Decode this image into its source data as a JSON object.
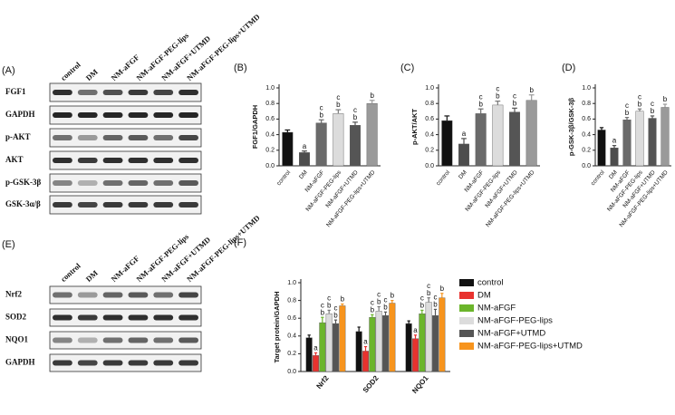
{
  "blots": [
    {
      "panel": "(A)",
      "columns": [
        "control",
        "DM",
        "NM-aFGF",
        "NM-aFGF-PEG-lips",
        "NM-aFGF+UTMD",
        "NM-aFGF-PEG-lips+UTMD"
      ],
      "rows": [
        "FGF1",
        "GAPDH",
        "p-AKT",
        "AKT",
        "p-GSK-3β",
        "GSK-3α/β"
      ]
    },
    {
      "panel": "(E)",
      "columns": [
        "control",
        "DM",
        "NM-aFGF",
        "NM-aFGF-PEG-lips",
        "NM-aFGF+UTMD",
        "NM-aFGF-PEG-lips+UTMD"
      ],
      "rows": [
        "Nrf2",
        "SOD2",
        "NQO1",
        "GAPDH"
      ]
    }
  ],
  "chart_data": [
    {
      "type": "bar",
      "panel": "(B)",
      "ylabel": "FGF1/GAPDH",
      "categories": [
        "control",
        "DM",
        "NM-aFGF",
        "NM-aFGF-PEG-lips",
        "NM-aFGF+UTMD",
        "NM-aFGF-PEG-lips+UTMD"
      ],
      "values": [
        0.43,
        0.17,
        0.55,
        0.67,
        0.52,
        0.8
      ],
      "errors": [
        0.03,
        0.02,
        0.04,
        0.05,
        0.04,
        0.04
      ],
      "letters": [
        [],
        [
          "a"
        ],
        [
          "c",
          "b"
        ],
        [
          "c",
          "b"
        ],
        [
          "c",
          "b"
        ],
        [
          "b"
        ]
      ],
      "colors": [
        "#111111",
        "#4d4d4d",
        "#6a6a6a",
        "#dcdcdc",
        "#555555",
        "#9a9a9a"
      ],
      "ylim": [
        0,
        1.0
      ],
      "yticks": [
        {
          "value": 0,
          "label": "0.0"
        },
        0.2,
        0.4,
        0.6,
        0.8,
        {
          "value": 1,
          "label": "1.0"
        }
      ]
    },
    {
      "type": "bar",
      "panel": "(C)",
      "ylabel": "p-AKT/AKT",
      "categories": [
        "control",
        "DM",
        "NM-aFGF",
        "NM-aFGF-PEG-lips",
        "NM-aFGF+UTMD",
        "NM-aFGF-PEG-lips+UTMD"
      ],
      "values": [
        0.58,
        0.28,
        0.67,
        0.78,
        0.69,
        0.84
      ],
      "errors": [
        0.06,
        0.07,
        0.06,
        0.05,
        0.05,
        0.07
      ],
      "letters": [
        [],
        [
          "a"
        ],
        [
          "c",
          "b"
        ],
        [
          "c",
          "b"
        ],
        [
          "c",
          "b"
        ],
        [
          "b"
        ]
      ],
      "colors": [
        "#111111",
        "#4d4d4d",
        "#6a6a6a",
        "#dcdcdc",
        "#555555",
        "#9a9a9a"
      ],
      "ylim": [
        0,
        1.0
      ],
      "yticks": [
        {
          "value": 0,
          "label": "0.0"
        },
        0.2,
        0.4,
        0.6,
        0.8,
        {
          "value": 1,
          "label": "1.0"
        }
      ]
    },
    {
      "type": "bar",
      "panel": "(D)",
      "ylabel": "p-GSK-3β/GSK-3β",
      "categories": [
        "control",
        "DM",
        "NM-aFGF",
        "NM-aFGF-PEG-lips",
        "NM-aFGF+UTMD",
        "NM-aFGF-PEG-lips+UTMD"
      ],
      "values": [
        0.46,
        0.23,
        0.59,
        0.7,
        0.61,
        0.75
      ],
      "errors": [
        0.03,
        0.03,
        0.03,
        0.03,
        0.03,
        0.04
      ],
      "letters": [
        [],
        [
          "a"
        ],
        [
          "c",
          "b"
        ],
        [
          "c",
          "b"
        ],
        [
          "c",
          "b"
        ],
        [
          "b"
        ]
      ],
      "colors": [
        "#111111",
        "#4d4d4d",
        "#6a6a6a",
        "#dcdcdc",
        "#555555",
        "#9a9a9a"
      ],
      "ylim": [
        0,
        1.0
      ],
      "yticks": [
        {
          "value": 0,
          "label": "0.0"
        },
        0.2,
        0.4,
        0.6,
        0.8,
        {
          "value": 1,
          "label": "1.0"
        }
      ]
    },
    {
      "type": "grouped_bar",
      "panel": "(F)",
      "ylabel": "Target protein/GAPDH",
      "categories": [
        "Nrf2",
        "SOD2",
        "NQO1"
      ],
      "series": [
        {
          "name": "control",
          "color": "#111111",
          "values": [
            0.38,
            0.45,
            0.54
          ],
          "errors": [
            0.03,
            0.05,
            0.03
          ],
          "letters": [
            [],
            [],
            []
          ]
        },
        {
          "name": "DM",
          "color": "#e8322e",
          "values": [
            0.18,
            0.23,
            0.37
          ],
          "errors": [
            0.03,
            0.05,
            0.04
          ],
          "letters": [
            [
              "a"
            ],
            [
              "a"
            ],
            [
              "a"
            ]
          ]
        },
        {
          "name": "NM-aFGF",
          "color": "#6bb52b",
          "values": [
            0.55,
            0.61,
            0.65
          ],
          "errors": [
            0.06,
            0.03,
            0.04
          ],
          "letters": [
            [
              "c",
              "b"
            ],
            [
              "c",
              "b"
            ],
            [
              "c",
              "b"
            ]
          ]
        },
        {
          "name": "NM-aFGF-PEG-lips",
          "color": "#dcdcdc",
          "values": [
            0.65,
            0.68,
            0.78
          ],
          "errors": [
            0.04,
            0.05,
            0.05
          ],
          "letters": [
            [
              "c",
              "b"
            ],
            [
              "c",
              "b"
            ],
            [
              "c",
              "b"
            ]
          ]
        },
        {
          "name": "NM-aFGF+UTMD",
          "color": "#555555",
          "values": [
            0.54,
            0.63,
            0.63
          ],
          "errors": [
            0.04,
            0.04,
            0.07
          ],
          "letters": [
            [
              "c",
              "b"
            ],
            [
              "c",
              "b"
            ],
            [
              "c",
              "b"
            ]
          ]
        },
        {
          "name": "NM-aFGF-PEG-lips+UTMD",
          "color": "#f7941d",
          "values": [
            0.74,
            0.77,
            0.83
          ],
          "errors": [
            0.02,
            0.03,
            0.05
          ],
          "letters": [
            [
              "b"
            ],
            [
              "b"
            ],
            [
              "b"
            ]
          ]
        }
      ],
      "ylim": [
        0,
        1.0
      ],
      "yticks": [
        {
          "value": 0,
          "label": "0.0"
        },
        0.2,
        0.4,
        0.6,
        0.8,
        {
          "value": 1,
          "label": "1.0"
        }
      ]
    }
  ]
}
